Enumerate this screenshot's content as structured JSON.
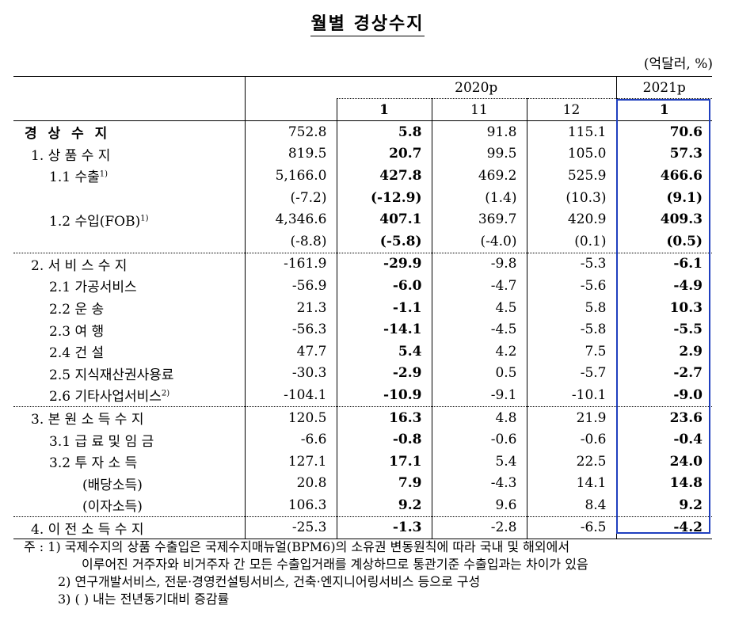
{
  "title": "월별 경상수지",
  "unit": "(억달러, %)",
  "header": {
    "year1": "2020p",
    "year2": "2021p",
    "months": [
      "1",
      "11",
      "12",
      "1"
    ]
  },
  "rows": [
    {
      "label": "경 상 수 지",
      "v": [
        "752.8",
        "5.8",
        "91.8",
        "115.1",
        "70.6"
      ]
    },
    {
      "label": "1. 상 품 수 지",
      "v": [
        "819.5",
        "20.7",
        "99.5",
        "105.0",
        "57.3"
      ]
    },
    {
      "label": "1.1  수출",
      "sup": "1)",
      "v": [
        "5,166.0",
        "427.8",
        "469.2",
        "525.9",
        "466.6"
      ]
    },
    {
      "label": "",
      "v": [
        "(-7.2)",
        "(-12.9)",
        "(1.4)",
        "(10.3)",
        "(9.1)"
      ]
    },
    {
      "label": "1.2  수입(FOB)",
      "sup": "1)",
      "v": [
        "4,346.6",
        "407.1",
        "369.7",
        "420.9",
        "409.3"
      ]
    },
    {
      "label": "",
      "v": [
        "(-8.8)",
        "(-5.8)",
        "(-4.0)",
        "(0.1)",
        "(0.5)"
      ]
    },
    {
      "label": "2. 서 비 스 수 지",
      "v": [
        "-161.9",
        "-29.9",
        "-9.8",
        "-5.3",
        "-6.1"
      ]
    },
    {
      "label": "2.1  가공서비스",
      "v": [
        "-56.9",
        "-6.0",
        "-4.7",
        "-5.6",
        "-4.9"
      ]
    },
    {
      "label": "2.2  운        송",
      "v": [
        "21.3",
        "-1.1",
        "4.5",
        "5.8",
        "10.3"
      ]
    },
    {
      "label": "2.3  여        행",
      "v": [
        "-56.3",
        "-14.1",
        "-4.5",
        "-5.8",
        "-5.5"
      ]
    },
    {
      "label": "2.4  건        설",
      "v": [
        "47.7",
        "5.4",
        "4.2",
        "7.5",
        "2.9"
      ]
    },
    {
      "label": "2.5  지식재산권사용료",
      "v": [
        "-30.3",
        "-2.9",
        "0.5",
        "-5.7",
        "-2.7"
      ]
    },
    {
      "label": "2.6  기타사업서비스",
      "sup": "2)",
      "v": [
        "-104.1",
        "-10.9",
        "-9.1",
        "-10.1",
        "-9.0"
      ]
    },
    {
      "label": "3. 본 원 소 득 수 지",
      "v": [
        "120.5",
        "16.3",
        "4.8",
        "21.9",
        "23.6"
      ]
    },
    {
      "label": "3.1  급 료 및 임 금",
      "v": [
        "-6.6",
        "-0.8",
        "-0.6",
        "-0.6",
        "-0.4"
      ]
    },
    {
      "label": "3.2  투  자  소  득",
      "v": [
        "127.1",
        "17.1",
        "5.4",
        "22.5",
        "24.0"
      ]
    },
    {
      "label": "(배당소득)",
      "v": [
        "20.8",
        "7.9",
        "-4.3",
        "14.1",
        "14.8"
      ]
    },
    {
      "label": "(이자소득)",
      "v": [
        "106.3",
        "9.2",
        "9.6",
        "8.4",
        "9.2"
      ]
    },
    {
      "label": "4. 이 전 소 득 수 지",
      "v": [
        "-25.3",
        "-1.3",
        "-2.8",
        "-6.5",
        "-4.2"
      ]
    }
  ],
  "notes": {
    "n1a": "주 :  1)   국제수지의 상품 수출입은 국제수지매뉴얼(BPM6)의 소유권 변동원칙에 따라 국내 및 해외에서",
    "n1b": "이루어진 거주자와 비거주자 간 모든 수출입거래를 계상하므로 통관기준 수출입과는 차이가 있음",
    "n2": "2)  연구개발서비스, 전문·경영컨설팅서비스, 건축·엔지니어링서비스 등으로 구성",
    "n3": "3)  (   )  내는 전년동기대비 증감률"
  },
  "colors": {
    "highlight_box": "#1f3fbf"
  }
}
